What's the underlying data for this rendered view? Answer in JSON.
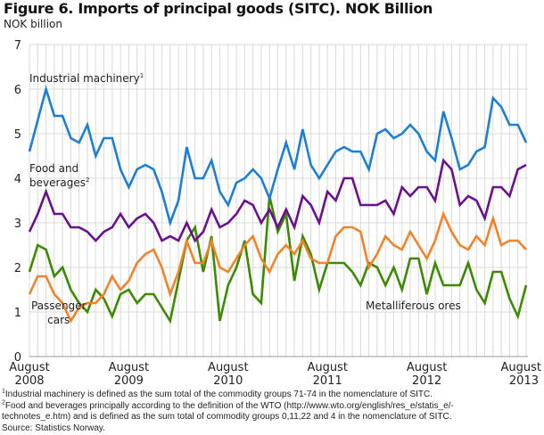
{
  "chart_data": {
    "type": "line",
    "title": "Figure 6. Imports of principal goods (SITC). NOK Billion",
    "ylabel": "NOK billion",
    "xlabel": "",
    "ylim": [
      0,
      7
    ],
    "yticks": [
      "0",
      "1",
      "2",
      "3",
      "4",
      "5",
      "6",
      "7"
    ],
    "x_start": "2008-08",
    "x_end": "2013-08",
    "frequency": "monthly",
    "xticks": [
      {
        "line1": "August",
        "line2": "2008"
      },
      {
        "line1": "August",
        "line2": "2009"
      },
      {
        "line1": "August",
        "line2": "2010"
      },
      {
        "line1": "August",
        "line2": "2011"
      },
      {
        "line1": "August",
        "line2": "2012"
      },
      {
        "line1": "August",
        "line2": "2013"
      }
    ],
    "grid": true,
    "series": [
      {
        "name": "Industrial machinery",
        "footnote": "1",
        "color": "#1b7fd6",
        "values": [
          4.6,
          5.3,
          6.0,
          5.4,
          5.4,
          4.9,
          4.8,
          5.2,
          4.5,
          4.9,
          4.9,
          4.2,
          3.8,
          4.2,
          4.3,
          4.2,
          3.7,
          3.0,
          3.5,
          4.7,
          4.0,
          4.0,
          4.4,
          3.7,
          3.4,
          3.9,
          4.0,
          4.2,
          4.0,
          3.55,
          4.2,
          4.8,
          4.2,
          5.1,
          4.3,
          4.0,
          4.3,
          4.6,
          4.7,
          4.6,
          4.6,
          4.2,
          5.0,
          5.1,
          4.9,
          5.0,
          5.2,
          5.0,
          4.6,
          4.4,
          5.5,
          4.9,
          4.2,
          4.3,
          4.6,
          4.7,
          5.8,
          5.6,
          5.2,
          5.2,
          4.8
        ]
      },
      {
        "name": "Food and beverages",
        "footnote": "2",
        "color": "#6b0f8e",
        "values": [
          2.8,
          3.2,
          3.7,
          3.2,
          3.2,
          2.9,
          2.9,
          2.8,
          2.6,
          2.8,
          2.9,
          3.2,
          2.9,
          3.1,
          3.2,
          3.0,
          2.6,
          2.7,
          2.6,
          3.0,
          2.6,
          2.8,
          3.3,
          2.9,
          3.0,
          3.2,
          3.5,
          3.4,
          3.0,
          3.3,
          2.9,
          3.3,
          2.9,
          3.6,
          3.4,
          3.0,
          3.7,
          3.5,
          4.0,
          4.0,
          3.4,
          3.4,
          3.4,
          3.5,
          3.2,
          3.8,
          3.6,
          3.8,
          3.8,
          3.5,
          4.4,
          4.2,
          3.4,
          3.6,
          3.5,
          3.1,
          3.8,
          3.8,
          3.6,
          4.2,
          4.3
        ]
      },
      {
        "name": "Passenger cars",
        "color": "#f28227",
        "values": [
          1.4,
          1.8,
          1.8,
          1.4,
          1.2,
          0.8,
          1.1,
          1.2,
          1.2,
          1.4,
          1.8,
          1.5,
          1.7,
          2.1,
          2.3,
          2.4,
          2.0,
          1.4,
          1.9,
          2.6,
          2.1,
          2.1,
          2.6,
          2.0,
          1.9,
          2.2,
          2.5,
          2.7,
          2.2,
          1.9,
          2.3,
          2.5,
          2.3,
          2.6,
          2.2,
          2.1,
          2.1,
          2.7,
          2.9,
          2.9,
          2.8,
          2.0,
          2.3,
          2.7,
          2.5,
          2.4,
          2.8,
          2.5,
          2.2,
          2.6,
          3.2,
          2.8,
          2.5,
          2.4,
          2.7,
          2.5,
          3.1,
          2.5,
          2.6,
          2.6,
          2.4
        ]
      },
      {
        "name": "Metalliferous ores",
        "color": "#3b8a00",
        "values": [
          1.9,
          2.5,
          2.4,
          1.8,
          2.0,
          1.5,
          1.2,
          1.0,
          1.5,
          1.3,
          0.9,
          1.4,
          1.5,
          1.2,
          1.4,
          1.4,
          1.1,
          0.8,
          1.7,
          2.6,
          2.9,
          1.9,
          2.7,
          0.8,
          1.6,
          2.0,
          2.6,
          1.4,
          1.2,
          3.6,
          2.8,
          3.2,
          1.7,
          2.7,
          2.3,
          1.5,
          2.1,
          2.1,
          2.1,
          1.9,
          1.6,
          2.1,
          2.0,
          1.6,
          2.0,
          1.5,
          2.2,
          2.2,
          1.4,
          2.1,
          1.6,
          1.6,
          1.6,
          2.1,
          1.5,
          1.2,
          1.9,
          1.9,
          1.3,
          0.9,
          1.6
        ]
      }
    ],
    "series_labels": {
      "industrial": "Industrial machinery",
      "food_line1": "Food and",
      "food_line2": "beverages",
      "cars_line1": "Passenger",
      "cars_line2": "cars",
      "ores": "Metalliferous ores"
    }
  },
  "footnotes": {
    "note1_mark": "1",
    "note1": "Industrial machinery is defined as the sum total of the commodity groups 71-74 in the nomenclature of SITC.",
    "note2_mark": "2",
    "note2_line1": "Food and beverages principally according to the definition of the WTO (http://www.wto.org/english/res_e/statis_e/-",
    "note2_line2": "technotes_e.htm) and is defined as the sum total of commodity groups 0,11,22 and 4 in the nomenclature of SITC.",
    "source": "Source: Statistics Norway."
  }
}
